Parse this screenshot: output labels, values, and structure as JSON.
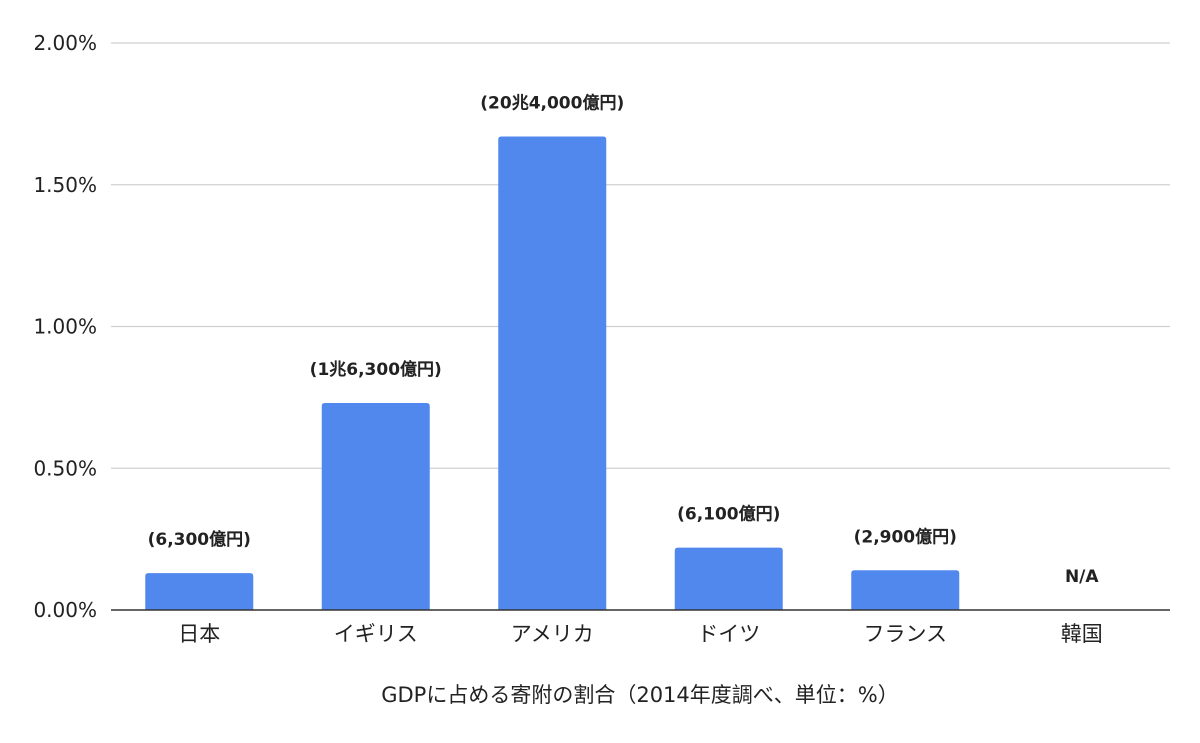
{
  "chart_data": {
    "type": "bar",
    "title": "",
    "xlabel": "GDPに占める寄附の割合（2014年度調べ、単位：%）",
    "ylabel": "",
    "ylim": [
      0,
      0.02
    ],
    "yticks": [
      {
        "value": 0,
        "label": "0.00%"
      },
      {
        "value": 0.005,
        "label": "0.50%"
      },
      {
        "value": 0.01,
        "label": "1.00%"
      },
      {
        "value": 0.015,
        "label": "1.50%"
      },
      {
        "value": 0.02,
        "label": "2.00%"
      }
    ],
    "grid": true,
    "legend": "none",
    "bar_color": "#5188ed",
    "categories": [
      "日本",
      "イギリス",
      "アメリカ",
      "ドイツ",
      "フランス",
      "韓国"
    ],
    "values": [
      0.0013,
      0.0073,
      0.0167,
      0.0022,
      0.0014,
      null
    ],
    "data_labels": [
      "(6,300億円)",
      "(1兆6,300億円)",
      "(20兆4,000億円)",
      "(6,100億円)",
      "(2,900億円)",
      "N/A"
    ]
  }
}
